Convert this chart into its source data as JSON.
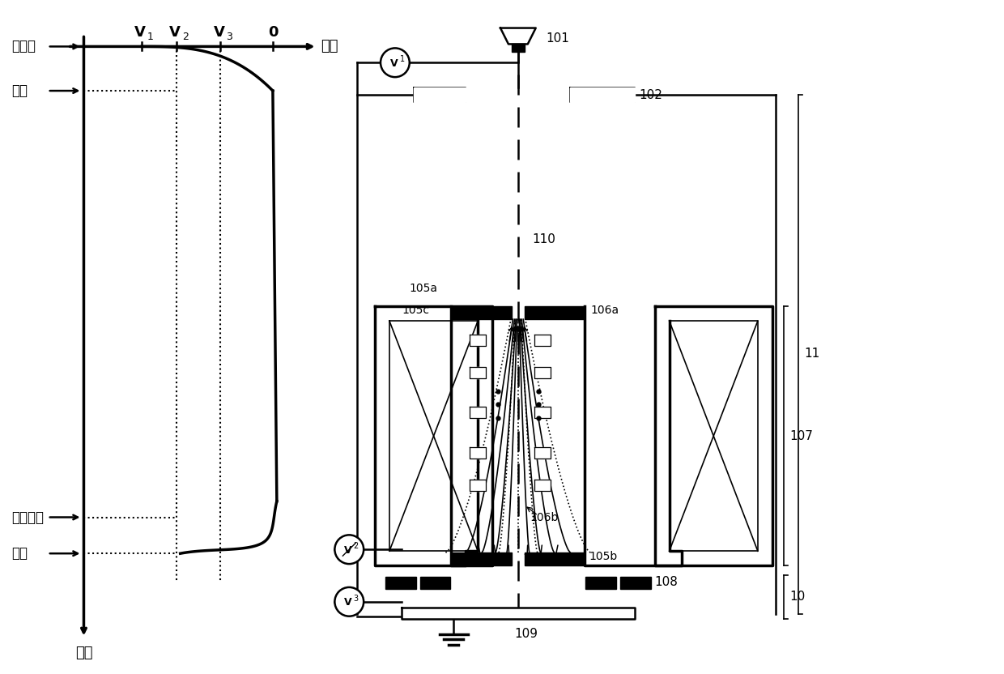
{
  "bg_color": "#ffffff",
  "line_color": "#000000",
  "fig_width": 12.4,
  "fig_height": 8.32,
  "labels": {
    "electron_source": "电子源",
    "anode": "阳极",
    "control_electrode": "控制电极",
    "sample": "样品",
    "position": "位置",
    "voltage": "电压"
  }
}
